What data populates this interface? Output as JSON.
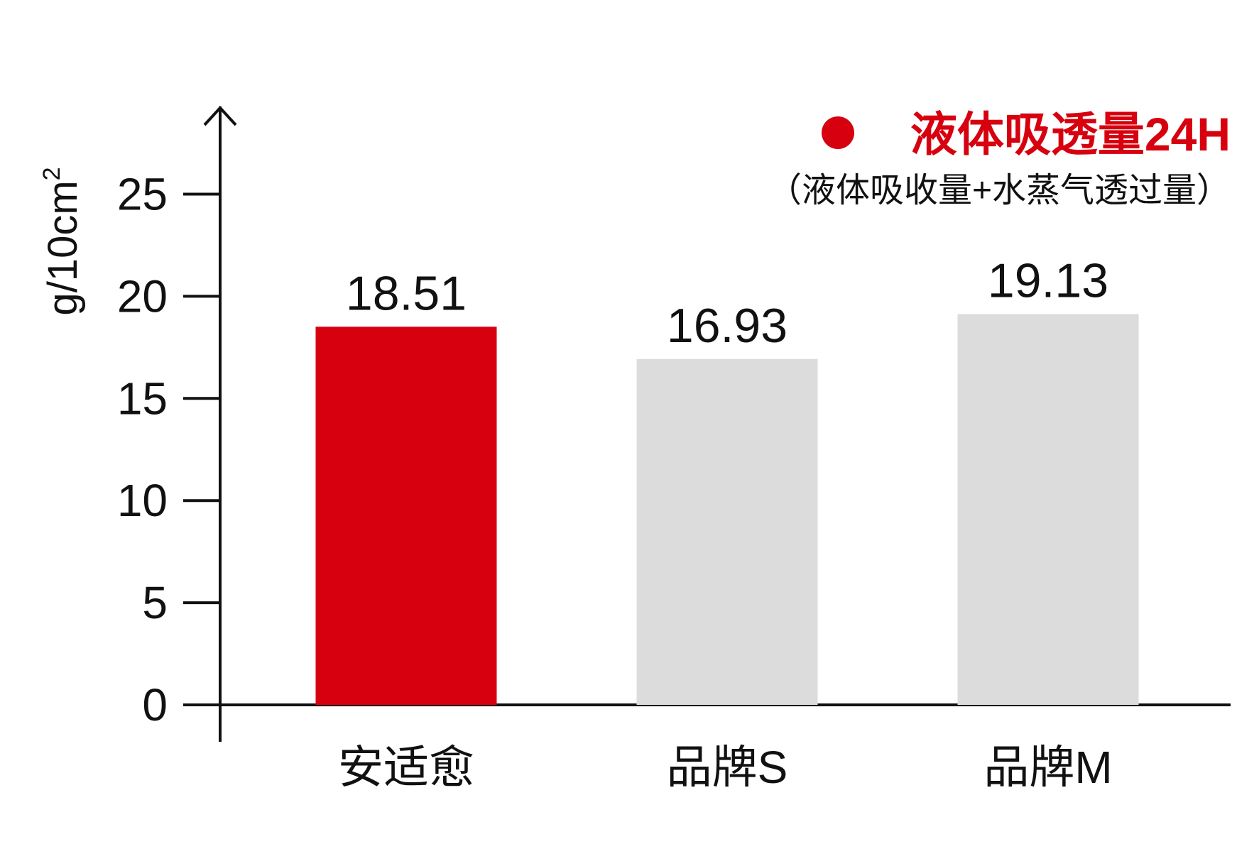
{
  "chart_data": {
    "type": "bar",
    "categories": [
      "安适愈",
      "品牌S",
      "品牌M"
    ],
    "values": [
      18.51,
      16.93,
      19.13
    ],
    "value_labels": [
      "18.51",
      "16.93",
      "19.13"
    ],
    "bar_colors": [
      "#d7000f",
      "#dcdcdc",
      "#dcdcdc"
    ],
    "ylabel": "g/10cm",
    "ylabel_superscript": "2",
    "ylim": [
      0,
      28
    ],
    "yticks": [
      0,
      5,
      10,
      15,
      20,
      25
    ],
    "grid": false,
    "legend": {
      "position": "top-right",
      "series_name": "液体吸透量24H",
      "note": "（液体吸收量+水蒸气透过量）",
      "color": "#d7000f"
    }
  }
}
